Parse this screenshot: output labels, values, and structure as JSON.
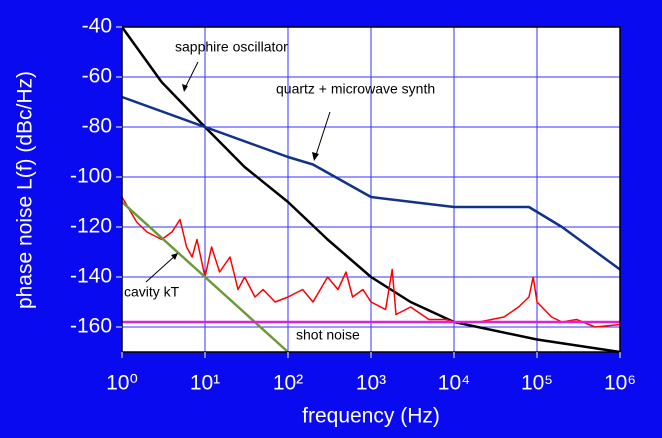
{
  "chart_data": {
    "type": "line",
    "x_label": "frequency (Hz)",
    "y_label": "phase noise L(f) (dBc/Hz)",
    "xscale": "log",
    "xlim": [
      1,
      1000000
    ],
    "ylim": [
      -170,
      -40
    ],
    "xticks": [
      {
        "value": 1,
        "label": "10⁰"
      },
      {
        "value": 10,
        "label": "10¹"
      },
      {
        "value": 100,
        "label": "10²"
      },
      {
        "value": 1000,
        "label": "10³"
      },
      {
        "value": 10000,
        "label": "10⁴"
      },
      {
        "value": 100000,
        "label": "10⁵"
      },
      {
        "value": 1000000,
        "label": "10⁶"
      }
    ],
    "yticks": [
      -40,
      -60,
      -80,
      -100,
      -120,
      -140,
      -160
    ],
    "grid": true,
    "series": [
      {
        "name": "sapphire oscillator",
        "color": "#000000",
        "x": [
          1,
          3,
          10,
          30,
          100,
          300,
          1000,
          3000,
          10000,
          100000,
          1000000
        ],
        "values": [
          -40,
          -62,
          -80,
          -96,
          -110,
          -125,
          -140,
          -150,
          -158,
          -165,
          -170
        ]
      },
      {
        "name": "quartz + microwave synth",
        "color": "#12328a",
        "x": [
          1,
          10,
          100,
          200,
          1000,
          10000,
          80000,
          200000,
          1000000
        ],
        "values": [
          -68,
          -80,
          -92,
          -95,
          -108,
          -112,
          -112,
          -120,
          -137
        ]
      },
      {
        "color": "#ff0000",
        "x": [
          1,
          1.5,
          2,
          3,
          4,
          5,
          6,
          7,
          8,
          10,
          12,
          15,
          20,
          25,
          30,
          40,
          50,
          70,
          100,
          150,
          200,
          300,
          400,
          500,
          600,
          800,
          1000,
          1500,
          1800,
          2000,
          3000,
          5000,
          8000,
          10000,
          20000,
          40000,
          60000,
          80000,
          90000,
          100000,
          150000,
          200000,
          300000,
          500000,
          1000000
        ],
        "values": [
          -108,
          -118,
          -122,
          -125,
          -122,
          -117,
          -128,
          -132,
          -125,
          -140,
          -128,
          -138,
          -132,
          -145,
          -140,
          -148,
          -145,
          -150,
          -148,
          -145,
          -150,
          -140,
          -145,
          -138,
          -148,
          -145,
          -150,
          -153,
          -137,
          -155,
          -152,
          -157,
          -157,
          -158,
          -158,
          -156,
          -152,
          -148,
          -140,
          -150,
          -156,
          -158,
          -157,
          -160,
          -159
        ]
      },
      {
        "name": "cavity kT",
        "color": "#6b9a3a",
        "x": [
          1,
          10,
          100
        ],
        "values": [
          -110,
          -140,
          -170
        ]
      },
      {
        "name": "shot noise",
        "color": "#dd22dd",
        "x": [
          1,
          1000000
        ],
        "values": [
          -158,
          -158
        ]
      }
    ]
  }
}
